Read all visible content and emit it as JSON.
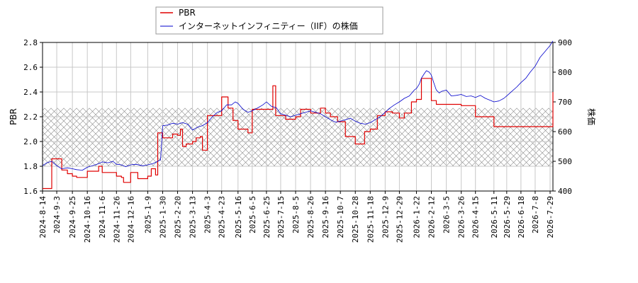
{
  "chart_data": {
    "type": "line",
    "legend_position": "top-left",
    "grid": true,
    "band": {
      "pbr_range": [
        1.8,
        2.27
      ],
      "pattern": "crosshatch"
    },
    "y_left": {
      "label": "PBR",
      "lim": [
        1.6,
        2.8
      ],
      "ticks": [
        "1.6",
        "1.8",
        "2.0",
        "2.2",
        "2.4",
        "2.6",
        "2.8"
      ]
    },
    "y_right": {
      "label": "株価",
      "lim": [
        400,
        900
      ],
      "ticks": [
        "400",
        "500",
        "600",
        "700",
        "800",
        "900"
      ]
    },
    "x_ticks": [
      "2024-8-14",
      "2024-9-3",
      "2024-9-25",
      "2024-10-16",
      "2024-11-6",
      "2024-11-26",
      "2024-12-16",
      "2025-1-9",
      "2025-1-30",
      "2025-2-20",
      "2025-3-13",
      "2025-4-3",
      "2025-4-23",
      "2025-5-16",
      "2025-6-5",
      "2025-6-25",
      "2025-7-15",
      "2025-8-5",
      "2025-8-26",
      "2025-9-16",
      "2025-10-7",
      "2025-10-28",
      "2025-11-18",
      "2025-12-9",
      "2025-12-29",
      "2026-1-22",
      "2026-2-12",
      "2026-3-5",
      "2026-3-26",
      "2026-4-15",
      "2026-5-11",
      "2026-5-29",
      "2026-6-18",
      "2026-7-8",
      "2026-7-29"
    ],
    "series": [
      {
        "name": "PBR",
        "axis": "left",
        "color": "#e00000",
        "type": "step",
        "points": [
          [
            "2024-8-14",
            1.62
          ],
          [
            "2024-8-27",
            1.86
          ],
          [
            "2024-9-10",
            1.77
          ],
          [
            "2024-9-18",
            1.74
          ],
          [
            "2024-9-25",
            1.72
          ],
          [
            "2024-10-1",
            1.71
          ],
          [
            "2024-10-16",
            1.76
          ],
          [
            "2024-11-1",
            1.8
          ],
          [
            "2024-11-6",
            1.75
          ],
          [
            "2024-11-26",
            1.72
          ],
          [
            "2024-12-3",
            1.71
          ],
          [
            "2024-12-6",
            1.67
          ],
          [
            "2024-12-16",
            1.75
          ],
          [
            "2024-12-26",
            1.7
          ],
          [
            "2025-1-9",
            1.72
          ],
          [
            "2025-1-14",
            1.78
          ],
          [
            "2025-1-20",
            1.73
          ],
          [
            "2025-1-23",
            2.07
          ],
          [
            "2025-1-30",
            2.03
          ],
          [
            "2025-2-13",
            2.06
          ],
          [
            "2025-2-20",
            2.05
          ],
          [
            "2025-2-24",
            2.1
          ],
          [
            "2025-2-27",
            1.96
          ],
          [
            "2025-3-4",
            1.98
          ],
          [
            "2025-3-13",
            2.0
          ],
          [
            "2025-3-18",
            2.03
          ],
          [
            "2025-3-24",
            2.04
          ],
          [
            "2025-3-27",
            1.93
          ],
          [
            "2025-4-3",
            2.21
          ],
          [
            "2025-4-23",
            2.36
          ],
          [
            "2025-5-2",
            2.27
          ],
          [
            "2025-5-9",
            2.17
          ],
          [
            "2025-5-16",
            2.1
          ],
          [
            "2025-5-30",
            2.07
          ],
          [
            "2025-6-5",
            2.26
          ],
          [
            "2025-6-25",
            2.26
          ],
          [
            "2025-7-4",
            2.45
          ],
          [
            "2025-7-8",
            2.21
          ],
          [
            "2025-7-22",
            2.18
          ],
          [
            "2025-8-5",
            2.2
          ],
          [
            "2025-8-12",
            2.26
          ],
          [
            "2025-8-26",
            2.23
          ],
          [
            "2025-9-9",
            2.27
          ],
          [
            "2025-9-16",
            2.23
          ],
          [
            "2025-9-23",
            2.2
          ],
          [
            "2025-10-3",
            2.16
          ],
          [
            "2025-10-14",
            2.04
          ],
          [
            "2025-10-28",
            1.98
          ],
          [
            "2025-11-10",
            2.08
          ],
          [
            "2025-11-18",
            2.1
          ],
          [
            "2025-11-28",
            2.21
          ],
          [
            "2025-12-9",
            2.24
          ],
          [
            "2025-12-19",
            2.23
          ],
          [
            "2025-12-29",
            2.19
          ],
          [
            "2026-1-5",
            2.23
          ],
          [
            "2026-1-15",
            2.32
          ],
          [
            "2026-1-22",
            2.34
          ],
          [
            "2026-1-29",
            2.51
          ],
          [
            "2026-2-12",
            2.33
          ],
          [
            "2026-2-19",
            2.3
          ],
          [
            "2026-2-26",
            2.3
          ],
          [
            "2026-3-5",
            2.3
          ],
          [
            "2026-3-26",
            2.29
          ],
          [
            "2026-4-15",
            2.2
          ],
          [
            "2026-5-11",
            2.12
          ],
          [
            "2026-5-29",
            2.12
          ],
          [
            "2026-6-18",
            2.12
          ],
          [
            "2026-7-8",
            2.12
          ],
          [
            "2026-7-29",
            2.12
          ],
          [
            "2026-8-2",
            2.4
          ]
        ]
      },
      {
        "name": "インターネットインフィニティー（IIF）の株価",
        "axis": "right",
        "color": "#0000cc",
        "type": "line",
        "points": [
          [
            "2024-8-14",
            485
          ],
          [
            "2024-8-20",
            495
          ],
          [
            "2024-8-27",
            500
          ],
          [
            "2024-9-3",
            485
          ],
          [
            "2024-9-10",
            475
          ],
          [
            "2024-9-18",
            478
          ],
          [
            "2024-9-25",
            475
          ],
          [
            "2024-10-1",
            472
          ],
          [
            "2024-10-9",
            470
          ],
          [
            "2024-10-16",
            480
          ],
          [
            "2024-10-23",
            485
          ],
          [
            "2024-11-1",
            492
          ],
          [
            "2024-11-6",
            498
          ],
          [
            "2024-11-14",
            495
          ],
          [
            "2024-11-21",
            500
          ],
          [
            "2024-11-26",
            490
          ],
          [
            "2024-12-3",
            488
          ],
          [
            "2024-12-9",
            482
          ],
          [
            "2024-12-16",
            488
          ],
          [
            "2024-12-23",
            490
          ],
          [
            "2025-1-2",
            485
          ],
          [
            "2025-1-9",
            488
          ],
          [
            "2025-1-16",
            492
          ],
          [
            "2025-1-23",
            500
          ],
          [
            "2025-1-27",
            505
          ],
          [
            "2025-1-30",
            620
          ],
          [
            "2025-2-6",
            622
          ],
          [
            "2025-2-13",
            628
          ],
          [
            "2025-2-20",
            625
          ],
          [
            "2025-2-27",
            630
          ],
          [
            "2025-3-6",
            625
          ],
          [
            "2025-3-13",
            605
          ],
          [
            "2025-3-20",
            615
          ],
          [
            "2025-3-27",
            620
          ],
          [
            "2025-4-3",
            630
          ],
          [
            "2025-4-10",
            650
          ],
          [
            "2025-4-17",
            665
          ],
          [
            "2025-4-23",
            670
          ],
          [
            "2025-4-30",
            690
          ],
          [
            "2025-5-7",
            690
          ],
          [
            "2025-5-12",
            700
          ],
          [
            "2025-5-16",
            695
          ],
          [
            "2025-5-23",
            675
          ],
          [
            "2025-5-30",
            665
          ],
          [
            "2025-6-5",
            670
          ],
          [
            "2025-6-13",
            680
          ],
          [
            "2025-6-20",
            690
          ],
          [
            "2025-6-25",
            700
          ],
          [
            "2025-7-2",
            685
          ],
          [
            "2025-7-9",
            680
          ],
          [
            "2025-7-15",
            660
          ],
          [
            "2025-7-22",
            655
          ],
          [
            "2025-7-29",
            650
          ],
          [
            "2025-8-5",
            655
          ],
          [
            "2025-8-12",
            660
          ],
          [
            "2025-8-19",
            665
          ],
          [
            "2025-8-26",
            670
          ],
          [
            "2025-9-2",
            665
          ],
          [
            "2025-9-9",
            660
          ],
          [
            "2025-9-16",
            650
          ],
          [
            "2025-9-23",
            640
          ],
          [
            "2025-9-30",
            632
          ],
          [
            "2025-10-7",
            635
          ],
          [
            "2025-10-14",
            640
          ],
          [
            "2025-10-21",
            645
          ],
          [
            "2025-10-28",
            635
          ],
          [
            "2025-11-4",
            628
          ],
          [
            "2025-11-11",
            625
          ],
          [
            "2025-11-18",
            630
          ],
          [
            "2025-11-25",
            640
          ],
          [
            "2025-12-2",
            650
          ],
          [
            "2025-12-9",
            665
          ],
          [
            "2025-12-16",
            680
          ],
          [
            "2025-12-22",
            690
          ],
          [
            "2025-12-29",
            700
          ],
          [
            "2026-1-5",
            712
          ],
          [
            "2026-1-12",
            720
          ],
          [
            "2026-1-19",
            740
          ],
          [
            "2026-1-22",
            745
          ],
          [
            "2026-1-26",
            760
          ],
          [
            "2026-1-29",
            780
          ],
          [
            "2026-2-2",
            795
          ],
          [
            "2026-2-5",
            805
          ],
          [
            "2026-2-9",
            800
          ],
          [
            "2026-2-12",
            790
          ],
          [
            "2026-2-16",
            760
          ],
          [
            "2026-2-19",
            740
          ],
          [
            "2026-2-23",
            730
          ],
          [
            "2026-2-26",
            735
          ],
          [
            "2026-3-5",
            740
          ],
          [
            "2026-3-12",
            720
          ],
          [
            "2026-3-19",
            722
          ],
          [
            "2026-3-26",
            725
          ],
          [
            "2026-4-2",
            718
          ],
          [
            "2026-4-9",
            720
          ],
          [
            "2026-4-15",
            715
          ],
          [
            "2026-4-22",
            722
          ],
          [
            "2026-4-29",
            712
          ],
          [
            "2026-5-6",
            705
          ],
          [
            "2026-5-11",
            700
          ],
          [
            "2026-5-18",
            703
          ],
          [
            "2026-5-25",
            712
          ],
          [
            "2026-5-29",
            720
          ],
          [
            "2026-6-5",
            735
          ],
          [
            "2026-6-12",
            750
          ],
          [
            "2026-6-18",
            765
          ],
          [
            "2026-6-25",
            780
          ],
          [
            "2026-7-1",
            800
          ],
          [
            "2026-7-8",
            820
          ],
          [
            "2026-7-15",
            850
          ],
          [
            "2026-7-22",
            870
          ],
          [
            "2026-7-29",
            890
          ],
          [
            "2026-8-2",
            905
          ]
        ]
      }
    ]
  }
}
